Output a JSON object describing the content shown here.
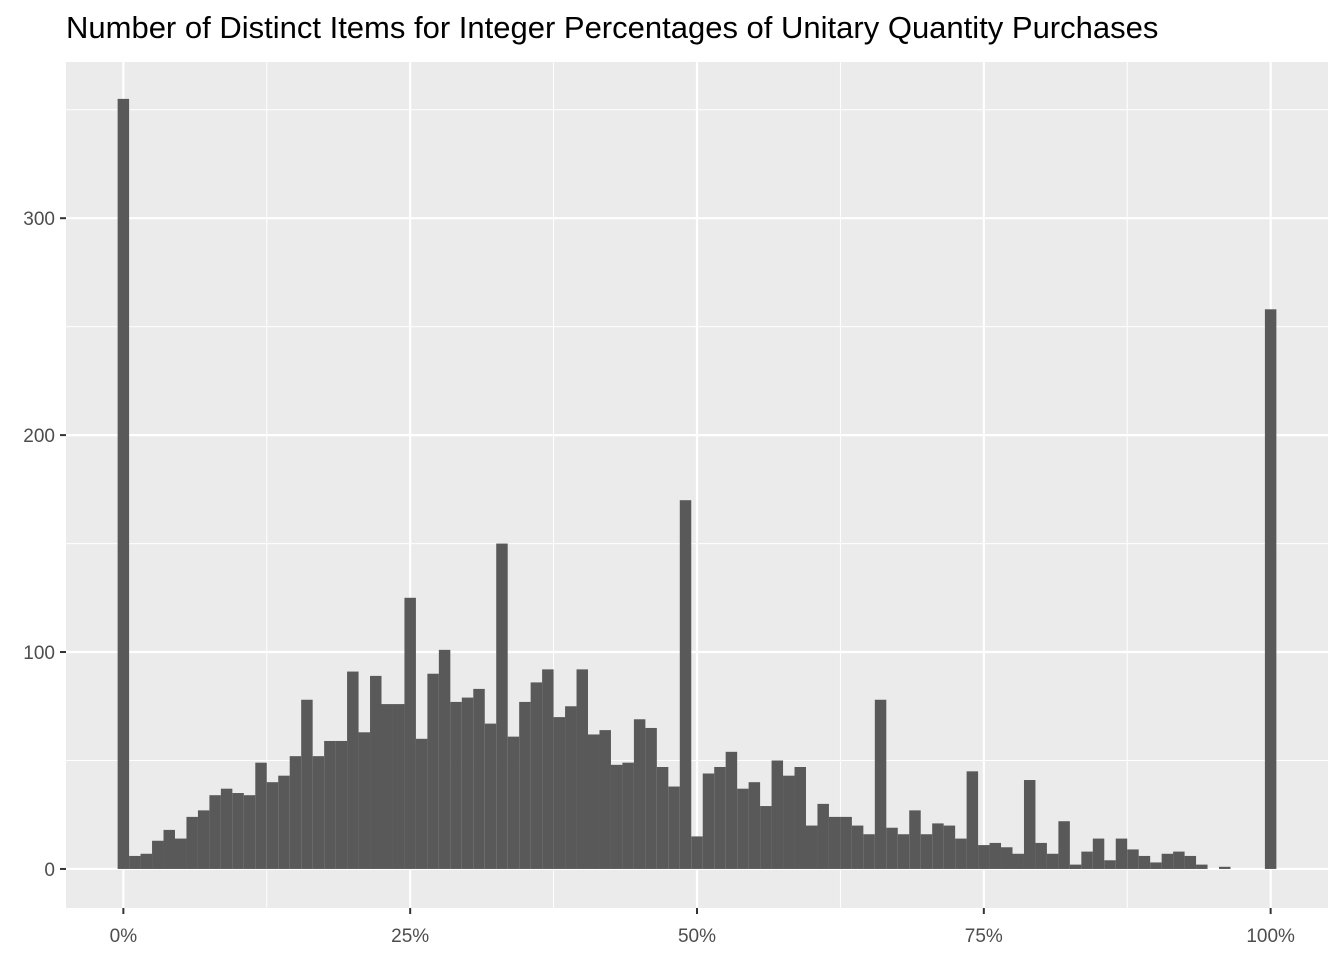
{
  "chart_data": {
    "type": "bar",
    "title": "Number of Distinct Items for Integer Percentages of Unitary Quantity Purchases",
    "xlabel": "",
    "ylabel": "",
    "x_unit": "percent",
    "xlim": [
      -5,
      105
    ],
    "ylim": [
      -18,
      372
    ],
    "x_ticks": [
      0,
      25,
      50,
      75,
      100
    ],
    "x_tick_labels": [
      "0%",
      "25%",
      "50%",
      "75%",
      "100%"
    ],
    "y_ticks": [
      0,
      100,
      200,
      300
    ],
    "y_tick_labels": [
      "0",
      "100",
      "200",
      "300"
    ],
    "grid": true,
    "legend": "none",
    "colors": {
      "panel": "#ebebeb",
      "grid": "#ffffff",
      "bar": "#595959"
    },
    "x": [
      0,
      1,
      2,
      3,
      4,
      5,
      6,
      7,
      8,
      9,
      10,
      11,
      12,
      13,
      14,
      15,
      16,
      17,
      18,
      19,
      20,
      21,
      22,
      23,
      24,
      25,
      26,
      27,
      28,
      29,
      30,
      31,
      32,
      33,
      34,
      35,
      36,
      37,
      38,
      39,
      40,
      41,
      42,
      43,
      44,
      45,
      46,
      47,
      48,
      49,
      50,
      51,
      52,
      53,
      54,
      55,
      56,
      57,
      58,
      59,
      60,
      61,
      62,
      63,
      64,
      65,
      66,
      67,
      68,
      69,
      70,
      71,
      72,
      73,
      74,
      75,
      76,
      77,
      78,
      79,
      80,
      81,
      82,
      83,
      84,
      85,
      86,
      87,
      88,
      89,
      90,
      91,
      92,
      93,
      94,
      95,
      96,
      97,
      98,
      99,
      100
    ],
    "values": [
      355,
      6,
      7,
      13,
      18,
      14,
      24,
      27,
      34,
      37,
      35,
      34,
      49,
      40,
      43,
      52,
      78,
      52,
      59,
      59,
      91,
      63,
      89,
      76,
      76,
      125,
      60,
      90,
      101,
      77,
      79,
      83,
      67,
      150,
      61,
      77,
      86,
      92,
      70,
      75,
      92,
      62,
      64,
      48,
      49,
      69,
      65,
      47,
      38,
      170,
      15,
      44,
      47,
      54,
      37,
      40,
      29,
      50,
      43,
      47,
      20,
      30,
      24,
      24,
      20,
      16,
      78,
      19,
      16,
      27,
      16,
      21,
      20,
      14,
      45,
      11,
      12,
      10,
      7,
      41,
      12,
      7,
      22,
      2,
      8,
      14,
      4,
      14,
      9,
      6,
      3,
      7,
      8,
      6,
      2,
      0,
      1,
      0,
      0,
      0,
      258
    ]
  }
}
